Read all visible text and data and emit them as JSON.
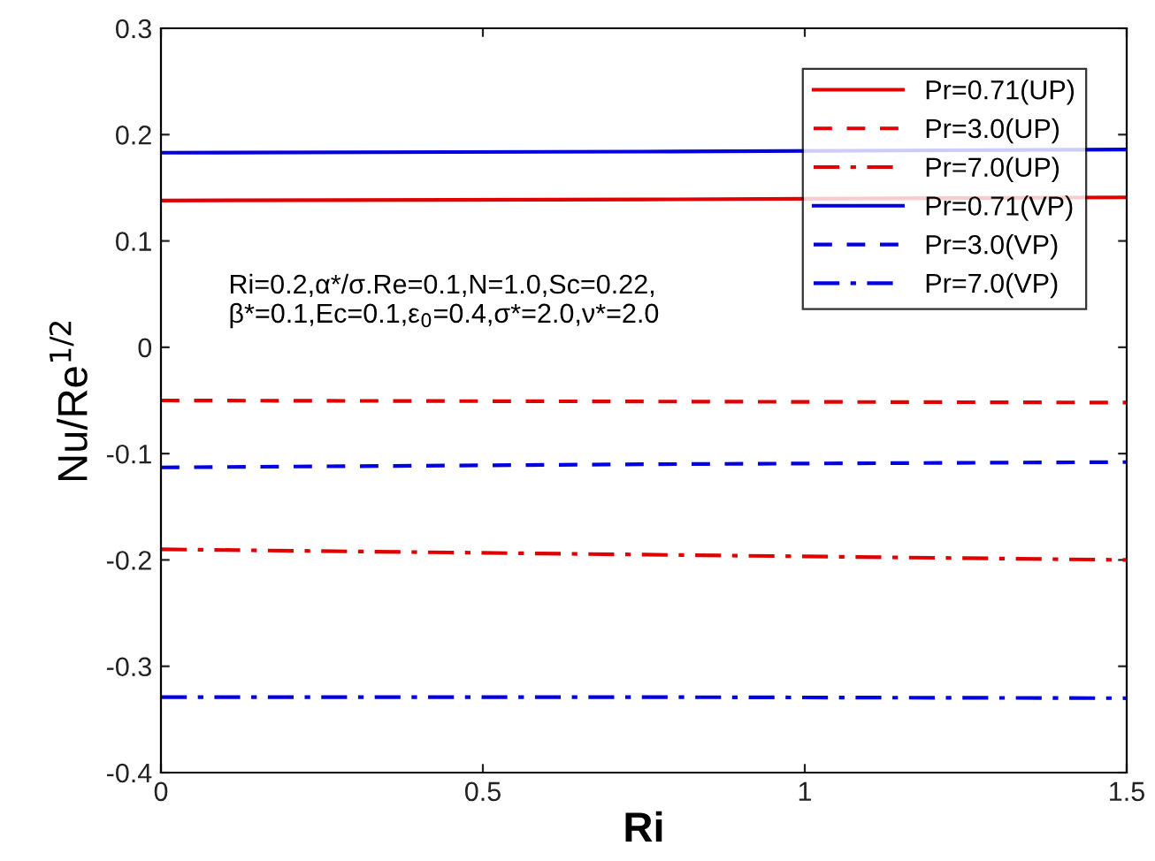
{
  "chart_data": {
    "type": "line",
    "xlabel": "Ri",
    "ylabel": "Nu/Re$^{1/2}$",
    "x": [
      0,
      0.75,
      1.5
    ],
    "series": [
      {
        "name": "Pr=0.71(UP)",
        "color": "#e00000",
        "line_style": "solid",
        "values": [
          0.138,
          0.139,
          0.141
        ]
      },
      {
        "name": "Pr=3.0(UP)",
        "color": "#e00000",
        "line_style": "dashed",
        "values": [
          -0.05,
          -0.051,
          -0.052
        ]
      },
      {
        "name": "Pr=7.0(UP)",
        "color": "#e00000",
        "line_style": "dashdot",
        "values": [
          -0.19,
          -0.195,
          -0.2
        ]
      },
      {
        "name": "Pr=0.71(VP)",
        "color": "#0000e0",
        "line_style": "solid",
        "values": [
          0.183,
          0.184,
          0.186
        ]
      },
      {
        "name": "Pr=3.0(VP)",
        "color": "#0000e0",
        "line_style": "dashed",
        "values": [
          -0.113,
          -0.11,
          -0.108
        ]
      },
      {
        "name": "Pr=7.0(VP)",
        "color": "#0000e0",
        "line_style": "dashdot",
        "values": [
          -0.329,
          -0.329,
          -0.33
        ]
      }
    ],
    "annotations": [
      "Ri=0.2,α*/σ.Re=0.1,N=1.0,Sc=0.22,\nβ*=0.1,Ec=0.1,ε$_{0}$=0.4,σ*=2.0,ν*=2.0"
    ],
    "xlim": [
      0,
      1.5
    ],
    "xticks": [
      0,
      0.5,
      1,
      1.5
    ],
    "ylim": [
      -0.4,
      0.3
    ],
    "yticks": [
      -0.4,
      -0.3,
      -0.2,
      -0.1,
      0,
      0.1,
      0.2,
      0.3
    ],
    "grid": false,
    "legend": "top right",
    "marker": "none"
  }
}
